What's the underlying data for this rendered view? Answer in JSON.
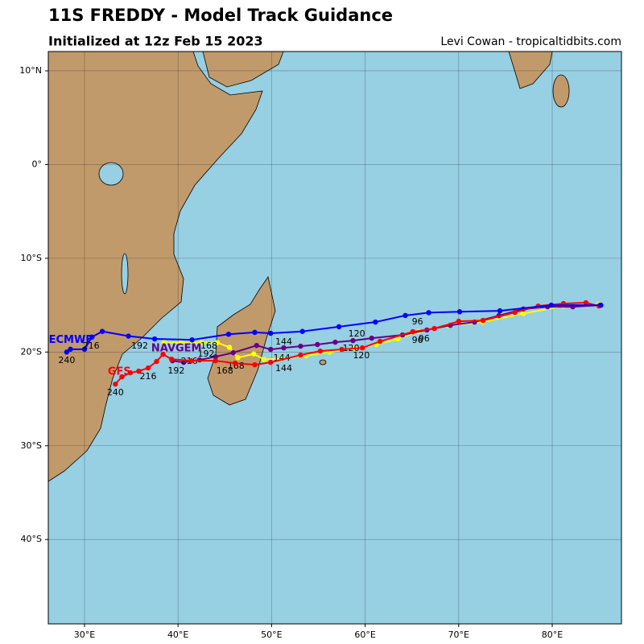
{
  "chart_data": {
    "type": "track-map",
    "title": "11S FREDDY - Model Track Guidance",
    "subtitle": "Initialized at 12z Feb 15 2023",
    "credit": "Levi Cowan - tropicaltidbits.com",
    "xlim": [
      26.13,
      87.4
    ],
    "ylim": [
      -49.0,
      12.06
    ],
    "xticks": [
      {
        "value": 30,
        "label": "30°E"
      },
      {
        "value": 40,
        "label": "40°E"
      },
      {
        "value": 50,
        "label": "50°E"
      },
      {
        "value": 60,
        "label": "60°E"
      },
      {
        "value": 70,
        "label": "70°E"
      },
      {
        "value": 80,
        "label": "80°E"
      }
    ],
    "yticks": [
      {
        "value": 10,
        "label": "10°N"
      },
      {
        "value": 0,
        "label": "0°"
      },
      {
        "value": -10,
        "label": "10°S"
      },
      {
        "value": -20,
        "label": "20°S"
      },
      {
        "value": -30,
        "label": "30°S"
      },
      {
        "value": -40,
        "label": "40°S"
      }
    ],
    "grid": true,
    "tracks": [
      {
        "color": "#ffff00",
        "lon": [
          85.0,
          81.2,
          76.9,
          72.6,
          68.8,
          65.7,
          63.5,
          61.2,
          58.8,
          56.2,
          53.7,
          51.1,
          49.2,
          48.1,
          46.4,
          45.5,
          44.2,
          42.5,
          40.3,
          38.5
        ],
        "lat": [
          -14.9,
          -15.1,
          -15.9,
          -16.8,
          -17.2,
          -17.8,
          -18.6,
          -19.2,
          -19.6,
          -20.0,
          -20.4,
          -20.7,
          -20.8,
          -20.2,
          -20.6,
          -19.5,
          -19.0,
          -19.0,
          -19.0,
          -19.0
        ]
      },
      {
        "name": "NAVGEM",
        "color": "#660088",
        "lon": [
          85.1,
          82.2,
          79.5,
          76.9,
          74.3,
          71.7,
          69.1,
          66.6,
          64.0,
          60.7,
          58.7,
          56.8,
          54.9,
          53.1,
          51.3,
          49.9,
          48.4,
          45.9,
          44.0,
          42.3,
          40.6,
          39.4
        ],
        "lat": [
          -15.0,
          -15.17,
          -15.17,
          -15.41,
          -16.12,
          -16.8,
          -17.15,
          -17.65,
          -18.18,
          -18.52,
          -18.78,
          -18.95,
          -19.2,
          -19.38,
          -19.55,
          -19.72,
          -19.3,
          -20.07,
          -20.5,
          -20.84,
          -21.1,
          -20.93
        ],
        "labels": [
          {
            "text": "216",
            "lon": 41.2,
            "lat": -21.0
          },
          {
            "text": "192",
            "lon": 43.0,
            "lat": -20.24
          },
          {
            "text": "168",
            "lon": 46.2,
            "lat": -21.52
          },
          {
            "text": "144",
            "lon": 51.1,
            "lat": -20.67
          },
          {
            "text": "120",
            "lon": 58.5,
            "lat": -19.62
          },
          {
            "text": "96",
            "lon": 65.6,
            "lat": -18.78
          }
        ]
      },
      {
        "name": "GFS",
        "color": "#ff0000",
        "lon": [
          85.0,
          83.6,
          81.2,
          78.5,
          76.0,
          72.6,
          70.0,
          67.4,
          65.1,
          61.6,
          59.7,
          57.5,
          55.2,
          53.1,
          49.9,
          48.2,
          46.1,
          44.0,
          41.4,
          39.3,
          38.4,
          37.7,
          36.8,
          35.8,
          34.9,
          34.0,
          33.3
        ],
        "lat": [
          -15.09,
          -14.74,
          -14.83,
          -15.09,
          -15.77,
          -16.63,
          -16.72,
          -17.49,
          -17.83,
          -18.86,
          -19.55,
          -19.72,
          -19.9,
          -20.32,
          -21.1,
          -21.36,
          -21.19,
          -20.93,
          -20.93,
          -20.76,
          -20.24,
          -21.01,
          -21.7,
          -22.04,
          -22.21,
          -22.64,
          -23.42
        ],
        "labels": [
          {
            "text": "240",
            "lon": 33.3,
            "lat": -24.36
          },
          {
            "text": "216",
            "lon": 36.8,
            "lat": -22.64
          },
          {
            "text": "192",
            "lon": 39.8,
            "lat": -22.04
          },
          {
            "text": "168",
            "lon": 45.0,
            "lat": -22.04
          },
          {
            "text": "144",
            "lon": 51.3,
            "lat": -21.79
          },
          {
            "text": "120",
            "lon": 59.6,
            "lat": -20.41
          },
          {
            "text": "96",
            "lon": 66.3,
            "lat": -18.6
          }
        ]
      },
      {
        "name": "ECMWF",
        "color": "#0000ff",
        "lon": [
          85.2,
          79.9,
          74.4,
          70.1,
          66.8,
          64.3,
          61.1,
          57.2,
          53.3,
          49.9,
          48.2,
          45.4,
          41.5,
          37.5,
          34.7,
          31.9,
          30.8,
          30.0,
          28.5,
          28.1
        ],
        "lat": [
          -15.0,
          -15.0,
          -15.6,
          -15.7,
          -15.8,
          -16.1,
          -16.8,
          -17.3,
          -17.8,
          -18.0,
          -17.9,
          -18.1,
          -18.7,
          -18.6,
          -18.3,
          -17.8,
          -18.4,
          -19.7,
          -19.7,
          -20.0
        ],
        "labels": [
          {
            "text": "240",
            "lon": 28.1,
            "lat": -20.93
          },
          {
            "text": "216",
            "lon": 30.7,
            "lat": -19.38
          },
          {
            "text": "192",
            "lon": 35.9,
            "lat": -19.38
          },
          {
            "text": "168",
            "lon": 43.3,
            "lat": -19.38
          },
          {
            "text": "144",
            "lon": 51.3,
            "lat": -18.94
          },
          {
            "text": "120",
            "lon": 59.1,
            "lat": -18.08
          },
          {
            "text": "96",
            "lon": 65.6,
            "lat": -16.8
          }
        ]
      }
    ]
  }
}
